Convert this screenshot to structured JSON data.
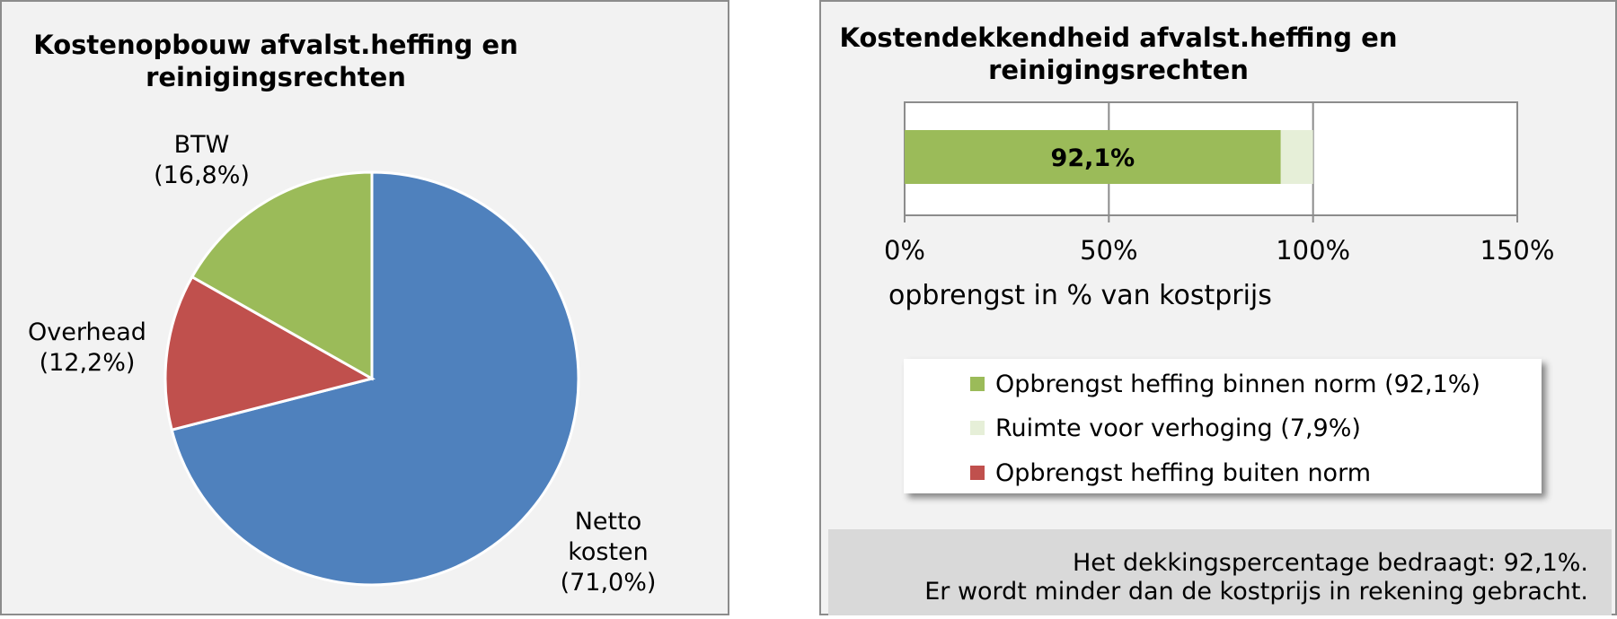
{
  "pie": {
    "title_line1": "Kostenopbouw  afvalst.heffing  en",
    "title_line2": "reinigingsrechten",
    "labels": {
      "btw_name": "BTW",
      "btw_pct": "(16,8%)",
      "overhead_name": "Overhead",
      "overhead_pct": "(12,2%)",
      "netto_line1": "Netto",
      "netto_line2": "kosten",
      "netto_pct": "(71,0%)"
    }
  },
  "bar": {
    "title_line1": "Kostendekkendheid  afvalst.heffing  en",
    "title_line2": "reinigingsrechten",
    "value_label": "92,1%",
    "tick_labels": [
      "0%",
      "50%",
      "100%",
      "150%"
    ],
    "axis_title": "opbrengst in % van kostprijs",
    "legend": [
      {
        "label": "Opbrengst heffing binnen norm (92,1%)",
        "color": "#9bbb59"
      },
      {
        "label": "Ruimte voor verhoging (7,9%)",
        "color": "#e6efd8"
      },
      {
        "label": "Opbrengst heffing buiten norm",
        "color": "#c0504d"
      }
    ],
    "note_line1": "Het dekkingspercentage bedraagt: 92,1%.",
    "note_line2": "Er wordt minder dan de kostprijs in rekening gebracht."
  },
  "chart_data": [
    {
      "type": "pie",
      "title": "Kostenopbouw afvalst.heffing en reinigingsrechten",
      "slices": [
        {
          "label": "Netto kosten",
          "value": 71.0,
          "color": "#4f81bd"
        },
        {
          "label": "Overhead",
          "value": 12.2,
          "color": "#c0504d"
        },
        {
          "label": "BTW",
          "value": 16.8,
          "color": "#9bbb59"
        }
      ]
    },
    {
      "type": "bar",
      "orientation": "horizontal",
      "stacked": true,
      "title": "Kostendekkendheid afvalst.heffing en reinigingsrechten",
      "xlabel": "opbrengst in % van kostprijs",
      "xlim": [
        0,
        150
      ],
      "xticks": [
        0,
        50,
        100,
        150
      ],
      "grid": true,
      "legend_position": "bottom",
      "series": [
        {
          "name": "Opbrengst heffing binnen norm",
          "values": [
            92.1
          ],
          "color": "#9bbb59"
        },
        {
          "name": "Ruimte voor verhoging",
          "values": [
            7.9
          ],
          "color": "#e6efd8"
        },
        {
          "name": "Opbrengst heffing buiten norm",
          "values": [
            0
          ],
          "color": "#c0504d"
        }
      ]
    }
  ]
}
